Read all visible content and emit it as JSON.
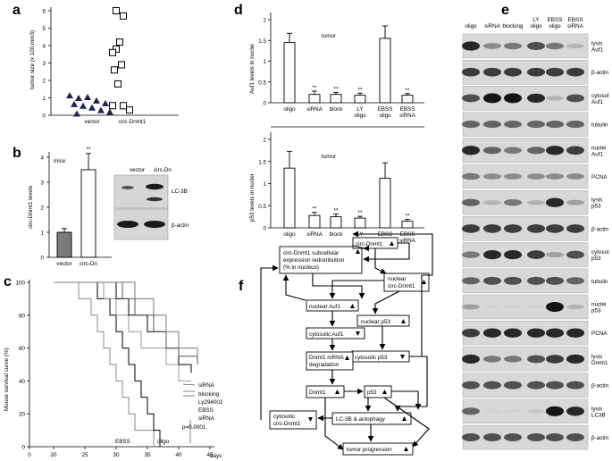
{
  "panels": {
    "a": {
      "letter": "a",
      "ylabel": "tumor size (x 100 mm3)",
      "yticks": [
        "0",
        "1",
        "2",
        "3",
        "4",
        "5",
        "6"
      ],
      "categories": [
        "vector",
        "circ-Dnmt1"
      ]
    },
    "b": {
      "letter": "b",
      "title": "mice",
      "ylabel": "circ-Dnmt1 levels",
      "yticks": [
        "0",
        "1",
        "2",
        "3",
        "4"
      ],
      "categories": [
        "vector",
        "circ-Dn"
      ],
      "sig": "**",
      "blot_headers": [
        "vector",
        "circ-Dn"
      ],
      "blot_labels": [
        "LC-3B",
        "β-actin"
      ]
    },
    "c": {
      "letter": "c",
      "ylabel": "Mouse survival curve (%)",
      "yticks": [
        "0",
        "20",
        "40",
        "60",
        "80",
        "100"
      ],
      "xticks": [
        "0",
        "20",
        "25",
        "30",
        "35",
        "40",
        "45"
      ],
      "xunit": "days",
      "series_labels": [
        "siRNA",
        "blocking",
        "Ly294002",
        "EBSS siRNA",
        "EBSS",
        "oligo"
      ],
      "pvalue": "p=0.0001"
    },
    "d": {
      "letter": "d",
      "top": {
        "title": "tumor",
        "ylabel": "Auf1 levels in nuclei",
        "yticks": [
          "0",
          "0.5",
          "1",
          "1.5",
          "2"
        ]
      },
      "bottom": {
        "title": "tumor",
        "ylabel": "p53 levels in nuclei",
        "yticks": [
          "0",
          "0.5",
          "1",
          "1.5",
          "2"
        ]
      },
      "xlabels": [
        "oligo",
        "siRNA",
        "block",
        "LY oligo",
        "EBSS oligo",
        "EBSS siRNA"
      ],
      "sig": "**"
    },
    "e": {
      "letter": "e",
      "headers": [
        "oligo",
        "siRNA",
        "blocking",
        "LY oligo",
        "EBSS oligo",
        "EBSS siRNA"
      ],
      "rows": [
        "lysis Auf1",
        "β-actin",
        "cytosol Auf1",
        "tubulin",
        "nuclei Auf1",
        "PCNA",
        "lysis p53",
        "β-actin",
        "cytosol p53",
        "tubulin",
        "nuclei p53",
        "PCNA",
        "lysis Dnmt1",
        "β-actin",
        "lysis LC3B",
        "β-actin"
      ]
    },
    "f": {
      "letter": "f",
      "nodes": {
        "redistribution": [
          "circ-Dnmt1 subcellular",
          "expression redistribution",
          "(% in nucleus)"
        ],
        "circ": "circ-Dnmt1",
        "nuclear_circ": [
          "nuclear",
          "circ-Dnmt1"
        ],
        "nuclear_auf1": "nuclear Auf1",
        "nuclear_p53": "nuclear p53",
        "cytosolic_auf1": "cytosolic Auf1",
        "cytosolic_p53": "cytosolic p53",
        "dnmt1_mrna": [
          "Dnmt1 mRNA",
          "degradation"
        ],
        "dnmt1": "Dnmt1",
        "p53": "p53",
        "cytosolic_circ": [
          "cytosolic",
          "circ-Dnmt1"
        ],
        "lc3b": "LC-3B & autophagy",
        "tumor": "tumor progression"
      }
    }
  },
  "chart_data": [
    {
      "type": "scatter",
      "panel": "a",
      "ylabel": "tumor size (x 100 mm3)",
      "ylim": [
        0,
        6
      ],
      "categories": [
        "vector",
        "circ-Dnmt1"
      ],
      "series": [
        {
          "values": [
            1.15,
            1.0,
            1.05,
            0.85,
            0.7,
            0.65,
            0.55,
            0.45,
            0.3,
            0.2,
            0.1
          ]
        },
        {
          "values": [
            6.0,
            5.7,
            4.2,
            3.8,
            3.6,
            2.9,
            2.6,
            1.8,
            0.55,
            0.55,
            0.3
          ]
        }
      ]
    },
    {
      "type": "bar",
      "panel": "b",
      "categories": [
        "vector",
        "circ-Dn"
      ],
      "values": [
        1.0,
        3.5
      ],
      "errors": [
        0.15,
        0.65
      ],
      "ylim": [
        0,
        4
      ]
    },
    {
      "type": "line",
      "panel": "c",
      "xlim": [
        0,
        45
      ],
      "ylim": [
        0,
        100
      ],
      "series": [
        {
          "name": "EBSS",
          "points": [
            [
              20,
              100
            ],
            [
              24,
              100
            ],
            [
              24,
              90
            ],
            [
              26,
              90
            ],
            [
              26,
              80
            ],
            [
              27,
              80
            ],
            [
              27,
              70
            ],
            [
              28,
              70
            ],
            [
              28,
              60
            ],
            [
              29,
              60
            ],
            [
              29,
              50
            ],
            [
              30,
              50
            ],
            [
              30,
              40
            ],
            [
              31,
              40
            ],
            [
              31,
              30
            ],
            [
              32,
              30
            ],
            [
              32,
              20
            ],
            [
              33,
              20
            ],
            [
              33,
              10
            ],
            [
              36,
              10
            ],
            [
              36,
              0
            ]
          ]
        },
        {
          "name": "oligo",
          "points": [
            [
              20,
              100
            ],
            [
              27,
              100
            ],
            [
              27,
              90
            ],
            [
              29,
              90
            ],
            [
              29,
              80
            ],
            [
              30,
              80
            ],
            [
              30,
              70
            ],
            [
              31,
              70
            ],
            [
              31,
              60
            ],
            [
              32,
              60
            ],
            [
              32,
              50
            ],
            [
              33,
              50
            ],
            [
              33,
              40
            ],
            [
              34,
              40
            ],
            [
              34,
              30
            ],
            [
              35,
              30
            ],
            [
              35,
              20
            ],
            [
              36,
              20
            ],
            [
              36,
              10
            ],
            [
              37,
              10
            ],
            [
              37,
              0
            ]
          ]
        },
        {
          "name": "EBSS siRNA",
          "points": [
            [
              20,
              100
            ],
            [
              28,
              100
            ],
            [
              28,
              90
            ],
            [
              30,
              90
            ],
            [
              30,
              80
            ],
            [
              32,
              80
            ],
            [
              32,
              70
            ],
            [
              34,
              70
            ],
            [
              34,
              60
            ],
            [
              38,
              60
            ],
            [
              38,
              50
            ],
            [
              40,
              50
            ],
            [
              40,
              40
            ],
            [
              42,
              40
            ]
          ]
        },
        {
          "name": "Ly294002",
          "points": [
            [
              20,
              100
            ],
            [
              30,
              100
            ],
            [
              30,
              90
            ],
            [
              32,
              90
            ],
            [
              32,
              80
            ],
            [
              35,
              80
            ],
            [
              35,
              70
            ],
            [
              38,
              70
            ],
            [
              38,
              60
            ],
            [
              40,
              60
            ],
            [
              40,
              50
            ],
            [
              42,
              50
            ],
            [
              42,
              45
            ]
          ]
        },
        {
          "name": "blocking",
          "points": [
            [
              20,
              100
            ],
            [
              31,
              100
            ],
            [
              31,
              90
            ],
            [
              33,
              90
            ],
            [
              33,
              80
            ],
            [
              36,
              80
            ],
            [
              36,
              70
            ],
            [
              38,
              70
            ],
            [
              38,
              60
            ],
            [
              40,
              60
            ],
            [
              40,
              55
            ],
            [
              43,
              55
            ],
            [
              43,
              50
            ]
          ]
        },
        {
          "name": "siRNA",
          "points": [
            [
              20,
              100
            ],
            [
              33,
              100
            ],
            [
              33,
              90
            ],
            [
              36,
              90
            ],
            [
              36,
              80
            ],
            [
              38,
              80
            ],
            [
              38,
              70
            ],
            [
              40,
              70
            ],
            [
              40,
              60
            ],
            [
              43,
              60
            ],
            [
              43,
              55
            ]
          ]
        }
      ]
    },
    {
      "type": "bar",
      "panel": "d-top",
      "categories": [
        "oligo",
        "siRNA",
        "block",
        "LY oligo",
        "EBSS oligo",
        "EBSS siRNA"
      ],
      "values": [
        1.45,
        0.2,
        0.2,
        0.18,
        1.55,
        0.18
      ],
      "errors": [
        0.22,
        0.08,
        0.05,
        0.05,
        0.3,
        0.04
      ],
      "ylim": [
        0,
        2
      ]
    },
    {
      "type": "bar",
      "panel": "d-bottom",
      "categories": [
        "oligo",
        "siRNA",
        "block",
        "LY oligo",
        "EBSS oligo",
        "EBSS siRNA"
      ],
      "values": [
        1.35,
        0.28,
        0.25,
        0.22,
        1.12,
        0.15
      ],
      "errors": [
        0.38,
        0.07,
        0.06,
        0.04,
        0.35,
        0.04
      ],
      "ylim": [
        0,
        2
      ]
    }
  ]
}
